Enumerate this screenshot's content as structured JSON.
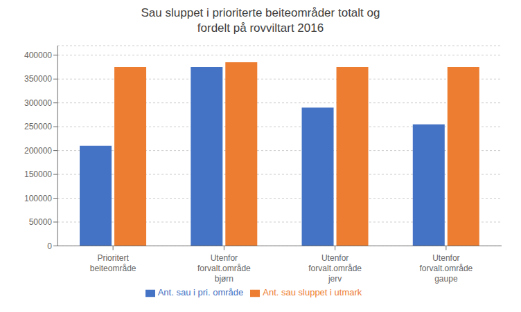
{
  "chart_data": {
    "type": "bar",
    "title": "Sau sluppet i prioriterte beiteområder totalt og\nfordelt på rovviltart 2016",
    "categories": [
      "Prioritert\nbeiteområde",
      "Utenfor\nforvalt.område\nbjørn",
      "Utenfor\nforvalt.område\njerv",
      "Utenfor\nforvalt.område\ngaupe"
    ],
    "series": [
      {
        "name": "Ant. sau i pri. område",
        "color": "#4472C4",
        "values": [
          210000,
          375000,
          290000,
          255000
        ]
      },
      {
        "name": "Ant. sau sluppet i utmark",
        "color": "#ED7D31",
        "values": [
          375000,
          385000,
          375000,
          375000
        ]
      }
    ],
    "ylim": [
      0,
      420000
    ],
    "yticks": [
      0,
      50000,
      100000,
      150000,
      200000,
      250000,
      300000,
      350000,
      400000
    ],
    "grid": true,
    "legend": "bottom"
  }
}
